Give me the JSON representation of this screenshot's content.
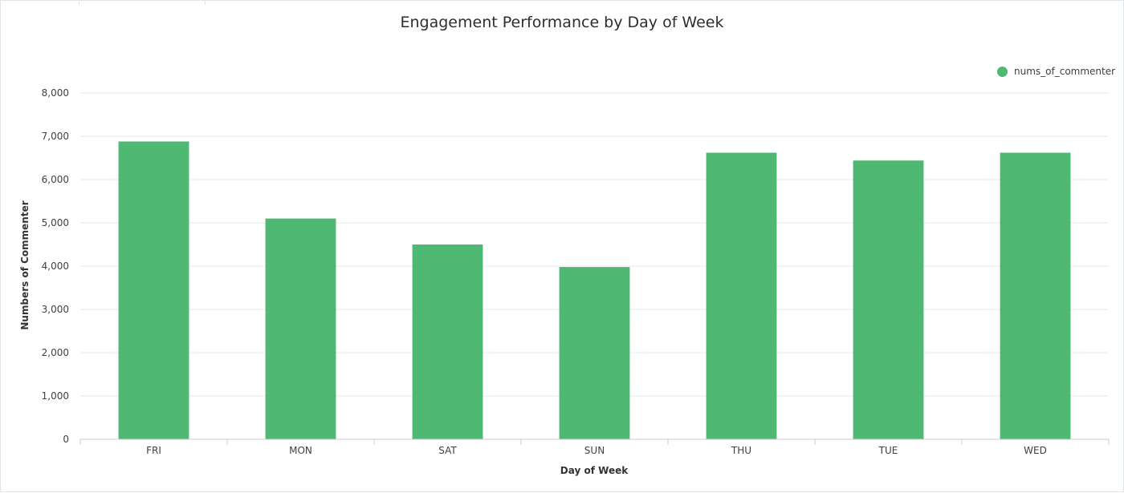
{
  "colors": {
    "bar": "#4fb873",
    "grid": "#e6e9eb",
    "axis": "#c9ced2",
    "tick_text": "#3c4145"
  },
  "chart_data": {
    "type": "bar",
    "title": "Engagement Performance by Day of Week",
    "xlabel": "Day of Week",
    "ylabel": "Numbers of Commenter",
    "categories": [
      "FRI",
      "MON",
      "SAT",
      "SUN",
      "THU",
      "TUE",
      "WED"
    ],
    "series": [
      {
        "name": "nums_of_commenter",
        "values": [
          6880,
          5100,
          4500,
          3980,
          6620,
          6440,
          6620
        ]
      }
    ],
    "ylim": [
      0,
      8000
    ],
    "yticks": [
      0,
      1000,
      2000,
      3000,
      4000,
      5000,
      6000,
      7000,
      8000
    ],
    "ytick_labels": [
      "0",
      "1,000",
      "2,000",
      "3,000",
      "4,000",
      "5,000",
      "6,000",
      "7,000",
      "8,000"
    ],
    "grid": true,
    "legend_position": "top-right"
  }
}
